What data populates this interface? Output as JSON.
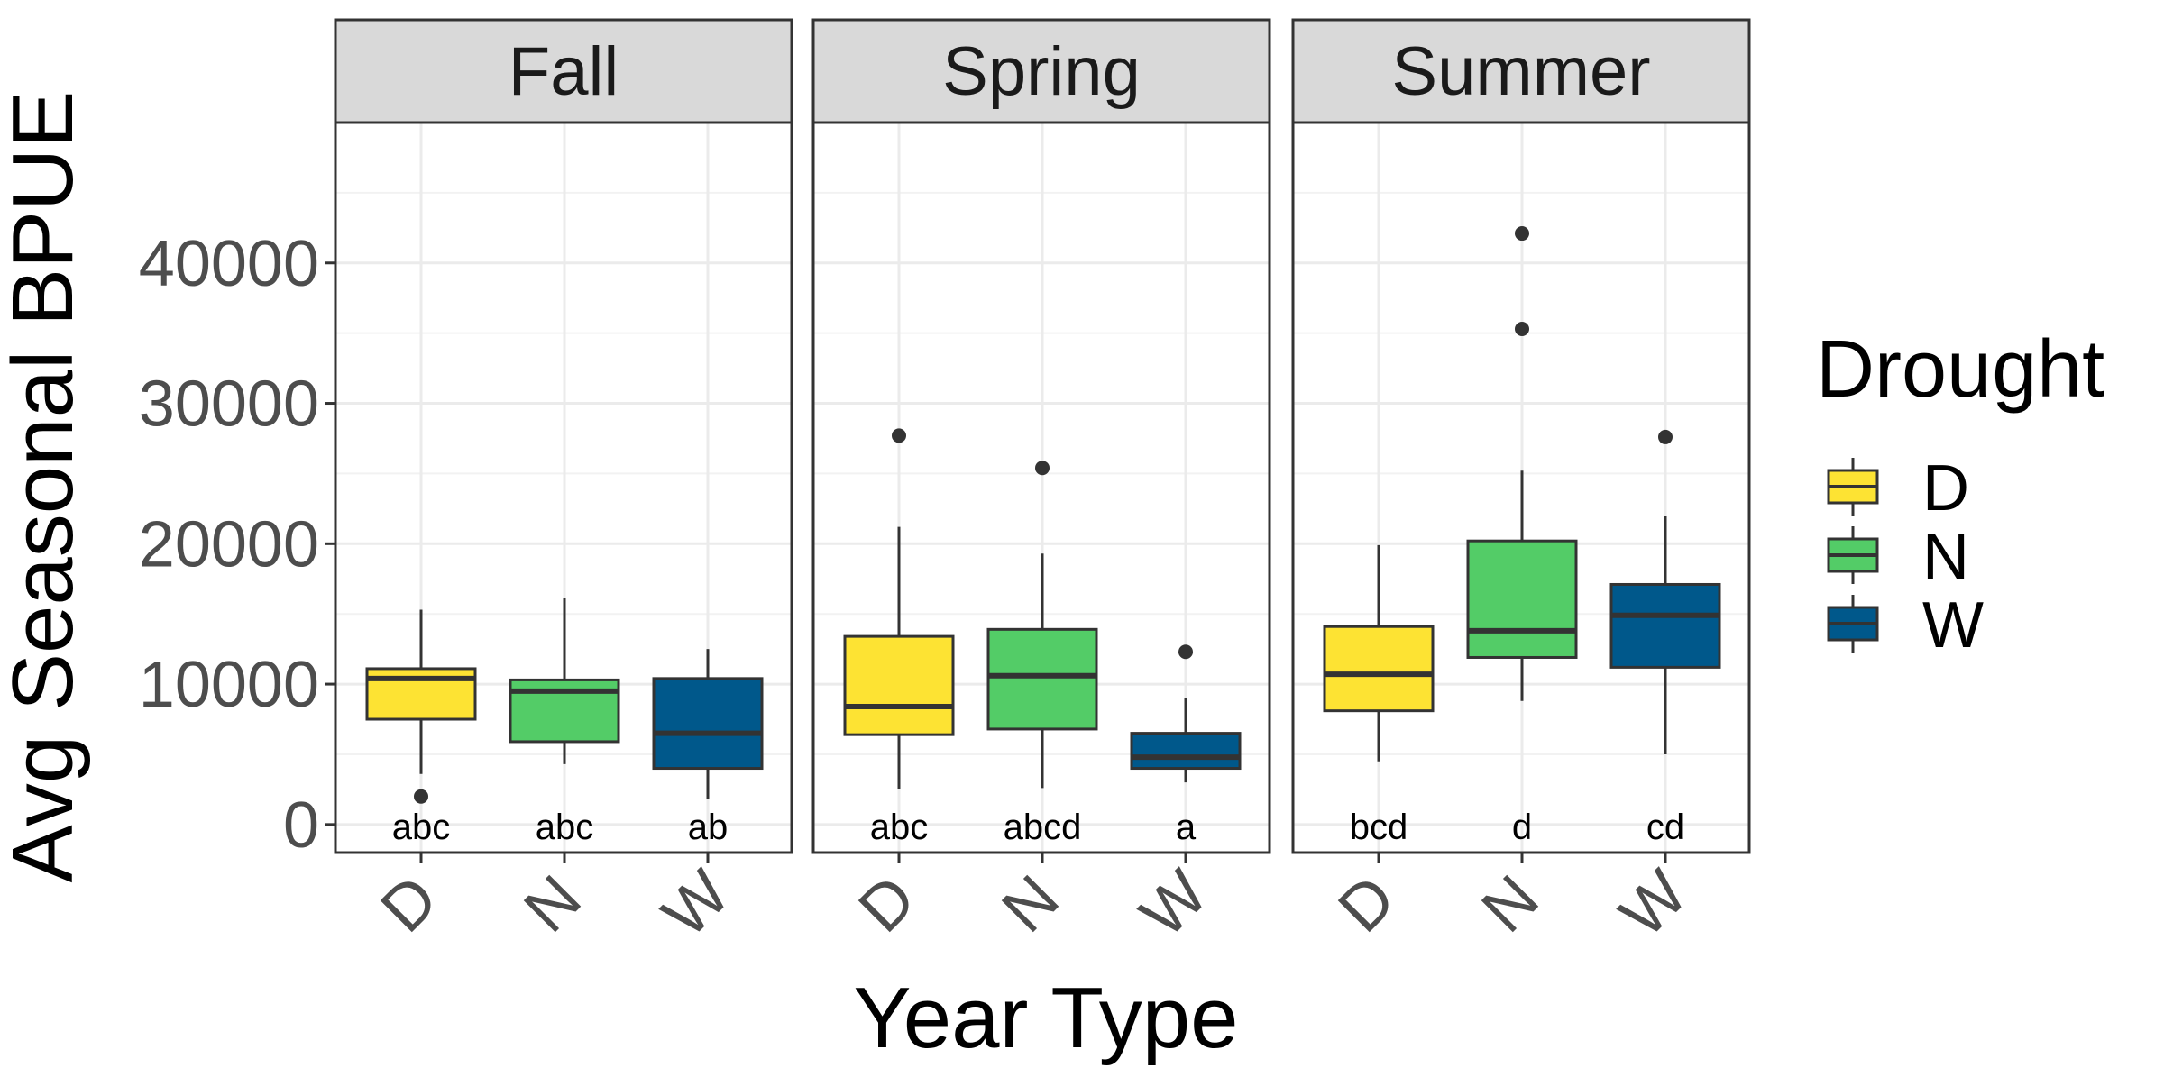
{
  "chart_data": {
    "type": "boxplot",
    "facets": [
      "Fall",
      "Spring",
      "Summer"
    ],
    "categories": [
      "D",
      "N",
      "W"
    ],
    "xlabel": "Year Type",
    "ylabel": "Avg Seasonal BPUE",
    "ylim": [
      -2000,
      50000
    ],
    "yticks": [
      0,
      10000,
      20000,
      30000,
      40000
    ],
    "ytick_labels": [
      "0",
      "10000",
      "20000",
      "30000",
      "40000"
    ],
    "grid": true,
    "legend": {
      "title": "Drought",
      "position": "right",
      "entries": [
        "D",
        "N",
        "W"
      ]
    },
    "colors": {
      "D": "#FDE333",
      "N": "#53CC67",
      "W": "#00588B"
    },
    "boxes": [
      {
        "facet": "Fall",
        "category": "D",
        "whisker_low": 3600,
        "q1": 7500,
        "median": 10400,
        "q3": 11100,
        "whisker_high": 15300,
        "outliers": [
          2000
        ],
        "sig": "abc"
      },
      {
        "facet": "Fall",
        "category": "N",
        "whisker_low": 4300,
        "q1": 5900,
        "median": 9500,
        "q3": 10300,
        "whisker_high": 16100,
        "outliers": [],
        "sig": "abc"
      },
      {
        "facet": "Fall",
        "category": "W",
        "whisker_low": 1800,
        "q1": 4000,
        "median": 6500,
        "q3": 10400,
        "whisker_high": 12500,
        "outliers": [],
        "sig": "ab"
      },
      {
        "facet": "Spring",
        "category": "D",
        "whisker_low": 2500,
        "q1": 6400,
        "median": 8400,
        "q3": 13400,
        "whisker_high": 21200,
        "outliers": [
          27700
        ],
        "sig": "abc"
      },
      {
        "facet": "Spring",
        "category": "N",
        "whisker_low": 2600,
        "q1": 6800,
        "median": 10600,
        "q3": 13900,
        "whisker_high": 19300,
        "outliers": [
          25400
        ],
        "sig": "abcd"
      },
      {
        "facet": "Spring",
        "category": "W",
        "whisker_low": 3000,
        "q1": 4000,
        "median": 4800,
        "q3": 6500,
        "whisker_high": 9000,
        "outliers": [
          12300
        ],
        "sig": "a"
      },
      {
        "facet": "Summer",
        "category": "D",
        "whisker_low": 4500,
        "q1": 8100,
        "median": 10700,
        "q3": 14100,
        "whisker_high": 19900,
        "outliers": [],
        "sig": "bcd"
      },
      {
        "facet": "Summer",
        "category": "N",
        "whisker_low": 8800,
        "q1": 11900,
        "median": 13800,
        "q3": 20200,
        "whisker_high": 25200,
        "outliers": [
          35300,
          42100
        ],
        "sig": "d"
      },
      {
        "facet": "Summer",
        "category": "W",
        "whisker_low": 5000,
        "q1": 11200,
        "median": 14900,
        "q3": 17100,
        "whisker_high": 22000,
        "outliers": [
          27600
        ],
        "sig": "cd"
      }
    ],
    "sig_label_y": 0
  }
}
